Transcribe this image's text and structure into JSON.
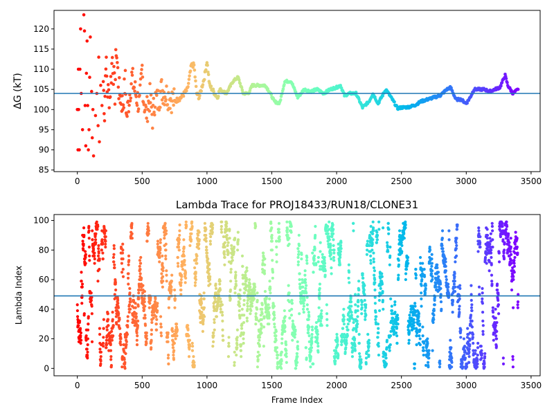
{
  "chart_data": [
    {
      "type": "scatter",
      "title": "",
      "xlabel": "",
      "ylabel": "ΔG (kT)",
      "xlim": [
        -180,
        3570
      ],
      "ylim": [
        84.6,
        124.6
      ],
      "xticks": [
        0,
        500,
        1000,
        1500,
        2000,
        2500,
        3000,
        3500
      ],
      "yticks": [
        85,
        90,
        95,
        100,
        105,
        110,
        115,
        120
      ],
      "reference_line": 104.0,
      "color_map": "rainbow (color by frame index)",
      "series": [
        {
          "points": [
            [
              0,
              100
            ],
            [
              5,
              90
            ],
            [
              8,
              110
            ],
            [
              10,
              100
            ],
            [
              15,
              90
            ],
            [
              20,
              110
            ],
            [
              25,
              120
            ],
            [
              30,
              104
            ],
            [
              40,
              95
            ],
            [
              50,
              123.5
            ],
            [
              55,
              119.5
            ],
            [
              60,
              101
            ],
            [
              65,
              91
            ],
            [
              70,
              109
            ],
            [
              75,
              117
            ],
            [
              80,
              101
            ],
            [
              85,
              90
            ],
            [
              90,
              95
            ],
            [
              95,
              108
            ],
            [
              100,
              118
            ],
            [
              110,
              104.5
            ],
            [
              115,
              93
            ],
            [
              120,
              100
            ],
            [
              125,
              88.5
            ],
            [
              140,
              98.5
            ],
            [
              150,
              104
            ],
            [
              160,
              96
            ],
            [
              165,
              113
            ],
            [
              170,
              92
            ],
            [
              180,
              106
            ],
            [
              190,
              101
            ],
            [
              200,
              107
            ],
            [
              210,
              99
            ],
            [
              220,
              113
            ],
            [
              230,
              105
            ],
            [
              250,
              103
            ],
            [
              270,
              113
            ],
            [
              290,
              104
            ],
            [
              300,
              115.5
            ],
            [
              320,
              105
            ],
            [
              350,
              101
            ],
            [
              370,
              107
            ],
            [
              380,
              98
            ],
            [
              400,
              103
            ],
            [
              420,
              108
            ],
            [
              450,
              104
            ],
            [
              480,
              101
            ],
            [
              500,
              110
            ],
            [
              510,
              103
            ],
            [
              530,
              99
            ],
            [
              560,
              103
            ],
            [
              580,
              98
            ],
            [
              600,
              103
            ],
            [
              620,
              102
            ],
            [
              650,
              105
            ],
            [
              680,
              104
            ],
            [
              750,
              102
            ],
            [
              800,
              103
            ],
            [
              850,
              105
            ],
            [
              880,
              111
            ],
            [
              900,
              111
            ],
            [
              920,
              104
            ],
            [
              940,
              103
            ],
            [
              980,
              108
            ],
            [
              1000,
              112
            ],
            [
              1020,
              106
            ],
            [
              1080,
              103
            ],
            [
              1100,
              105
            ],
            [
              1150,
              104
            ],
            [
              1200,
              107
            ],
            [
              1240,
              108
            ],
            [
              1280,
              104
            ],
            [
              1320,
              104
            ],
            [
              1350,
              106
            ],
            [
              1400,
              106
            ],
            [
              1450,
              106
            ],
            [
              1480,
              104.5
            ],
            [
              1520,
              102
            ],
            [
              1560,
              101.5
            ],
            [
              1600,
              107
            ],
            [
              1650,
              107
            ],
            [
              1700,
              103
            ],
            [
              1750,
              105
            ],
            [
              1800,
              104.5
            ],
            [
              1850,
              105
            ],
            [
              1900,
              104
            ],
            [
              1950,
              105
            ],
            [
              2000,
              105.5
            ],
            [
              2030,
              106
            ],
            [
              2060,
              103.5
            ],
            [
              2100,
              104
            ],
            [
              2150,
              104
            ],
            [
              2200,
              100.5
            ],
            [
              2250,
              102
            ],
            [
              2280,
              104
            ],
            [
              2320,
              101.5
            ],
            [
              2380,
              105
            ],
            [
              2430,
              102.5
            ],
            [
              2470,
              100.3
            ],
            [
              2500,
              100.5
            ],
            [
              2550,
              100.6
            ],
            [
              2600,
              101
            ],
            [
              2650,
              102
            ],
            [
              2700,
              102.5
            ],
            [
              2750,
              103
            ],
            [
              2800,
              103.5
            ],
            [
              2850,
              105
            ],
            [
              2880,
              105.5
            ],
            [
              2920,
              102.5
            ],
            [
              2960,
              102.5
            ],
            [
              3000,
              101.5
            ],
            [
              3030,
              103
            ],
            [
              3060,
              105
            ],
            [
              3100,
              105
            ],
            [
              3140,
              105
            ],
            [
              3180,
              104.5
            ],
            [
              3220,
              105
            ],
            [
              3260,
              105.5
            ],
            [
              3300,
              108.5
            ],
            [
              3320,
              106
            ],
            [
              3360,
              104
            ],
            [
              3400,
              105
            ]
          ]
        }
      ]
    },
    {
      "type": "scatter",
      "title": "Lambda Trace for PROJ18433/RUN18/CLONE31",
      "xlabel": "Frame Index",
      "ylabel": "Lambda Index",
      "xlim": [
        -180,
        3570
      ],
      "ylim": [
        -5,
        104
      ],
      "xticks": [
        0,
        500,
        1000,
        1500,
        2000,
        2500,
        3000,
        3500
      ],
      "yticks": [
        0,
        20,
        40,
        60,
        80,
        100
      ],
      "reference_line": 49.0,
      "color_map": "rainbow (color by frame index)",
      "series": [
        {
          "description": "≈3400 lambda samples uniformly spread over indices 0–99 across frames 0–3400",
          "x_range": [
            0,
            3400
          ],
          "y_range": [
            0,
            99
          ]
        }
      ]
    }
  ]
}
